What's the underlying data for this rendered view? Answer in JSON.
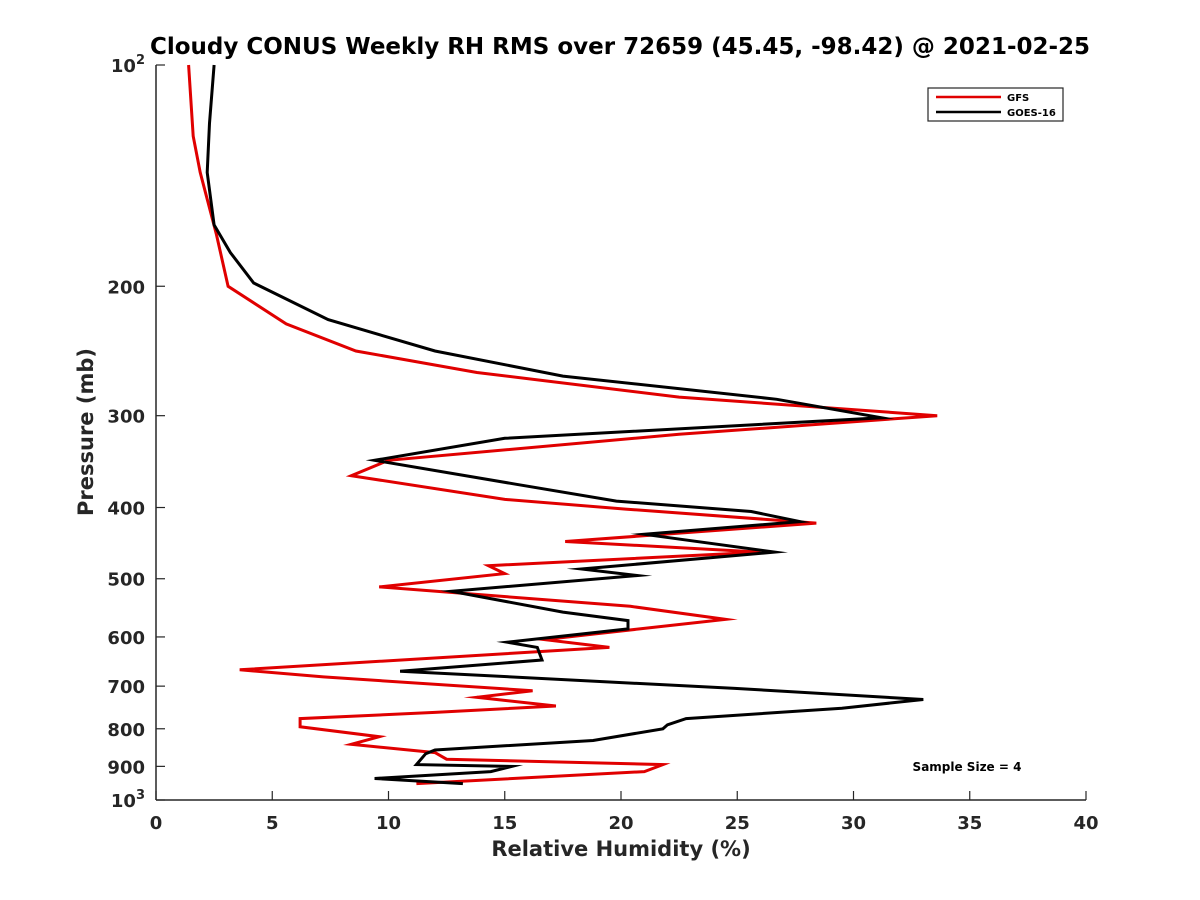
{
  "chart_data": {
    "type": "line",
    "title": "Cloudy CONUS Weekly RH RMS over 72659 (45.45, -98.42) @ 2021-02-25",
    "xlabel": "Relative Humidity (%)",
    "ylabel": "Pressure (mb)",
    "xlim": [
      0,
      40
    ],
    "ylim": [
      100,
      1000
    ],
    "yscale": "log",
    "y_reversed": true,
    "x_ticks": [
      0,
      5,
      10,
      15,
      20,
      25,
      30,
      35,
      40
    ],
    "y_ticks": [
      {
        "value": 100,
        "label": "10",
        "sup": "2"
      },
      {
        "value": 200,
        "label": "200"
      },
      {
        "value": 300,
        "label": "300"
      },
      {
        "value": 400,
        "label": "400"
      },
      {
        "value": 500,
        "label": "500"
      },
      {
        "value": 600,
        "label": "600"
      },
      {
        "value": 700,
        "label": "700"
      },
      {
        "value": 800,
        "label": "800"
      },
      {
        "value": 900,
        "label": "900"
      },
      {
        "value": 1000,
        "label": "10",
        "sup": "3"
      }
    ],
    "grid": false,
    "legend_position": "top-right",
    "annotation": "Sample Size = 4",
    "series": [
      {
        "name": "GFS",
        "color": "#e00000",
        "points": [
          [
            1.4,
            100
          ],
          [
            1.6,
            125
          ],
          [
            1.9,
            140
          ],
          [
            2.6,
            170
          ],
          [
            3.1,
            200
          ],
          [
            5.6,
            225
          ],
          [
            8.6,
            245
          ],
          [
            13.8,
            262
          ],
          [
            22.5,
            283
          ],
          [
            33.6,
            300
          ],
          [
            22.5,
            318
          ],
          [
            10.0,
            345
          ],
          [
            8.4,
            362
          ],
          [
            15.0,
            390
          ],
          [
            20.2,
            402
          ],
          [
            28.4,
            420
          ],
          [
            17.6,
            445
          ],
          [
            26.0,
            460
          ],
          [
            14.3,
            480
          ],
          [
            15.0,
            492
          ],
          [
            9.6,
            513
          ],
          [
            20.4,
            545
          ],
          [
            24.5,
            568
          ],
          [
            20.8,
            585
          ],
          [
            16.7,
            605
          ],
          [
            19.5,
            620
          ],
          [
            3.6,
            665
          ],
          [
            7.2,
            680
          ],
          [
            16.2,
            710
          ],
          [
            13.8,
            725
          ],
          [
            17.2,
            745
          ],
          [
            12.0,
            760
          ],
          [
            6.2,
            775
          ],
          [
            6.2,
            795
          ],
          [
            9.6,
            820
          ],
          [
            8.4,
            840
          ],
          [
            12.0,
            862
          ],
          [
            12.5,
            880
          ],
          [
            21.8,
            895
          ],
          [
            21.0,
            915
          ],
          [
            11.2,
            950
          ]
        ]
      },
      {
        "name": "GOES-16",
        "color": "#000000",
        "points": [
          [
            2.5,
            100
          ],
          [
            2.3,
            120
          ],
          [
            2.2,
            140
          ],
          [
            2.5,
            165
          ],
          [
            3.2,
            180
          ],
          [
            4.2,
            198
          ],
          [
            7.4,
            222
          ],
          [
            12.0,
            245
          ],
          [
            17.5,
            265
          ],
          [
            26.7,
            285
          ],
          [
            31.2,
            302
          ],
          [
            15.0,
            322
          ],
          [
            9.4,
            345
          ],
          [
            15.5,
            372
          ],
          [
            19.8,
            392
          ],
          [
            25.6,
            405
          ],
          [
            27.7,
            418
          ],
          [
            21.0,
            435
          ],
          [
            26.6,
            460
          ],
          [
            18.3,
            485
          ],
          [
            20.7,
            495
          ],
          [
            12.7,
            520
          ],
          [
            17.5,
            555
          ],
          [
            20.3,
            570
          ],
          [
            20.3,
            585
          ],
          [
            15.1,
            610
          ],
          [
            16.4,
            620
          ],
          [
            16.6,
            645
          ],
          [
            10.5,
            668
          ],
          [
            24.9,
            705
          ],
          [
            33.0,
            730
          ],
          [
            29.5,
            750
          ],
          [
            22.8,
            775
          ],
          [
            22.0,
            790
          ],
          [
            21.8,
            800
          ],
          [
            18.8,
            830
          ],
          [
            12.0,
            855
          ],
          [
            11.6,
            865
          ],
          [
            11.2,
            895
          ],
          [
            15.3,
            900
          ],
          [
            14.4,
            915
          ],
          [
            9.4,
            935
          ],
          [
            13.2,
            950
          ]
        ]
      }
    ]
  }
}
